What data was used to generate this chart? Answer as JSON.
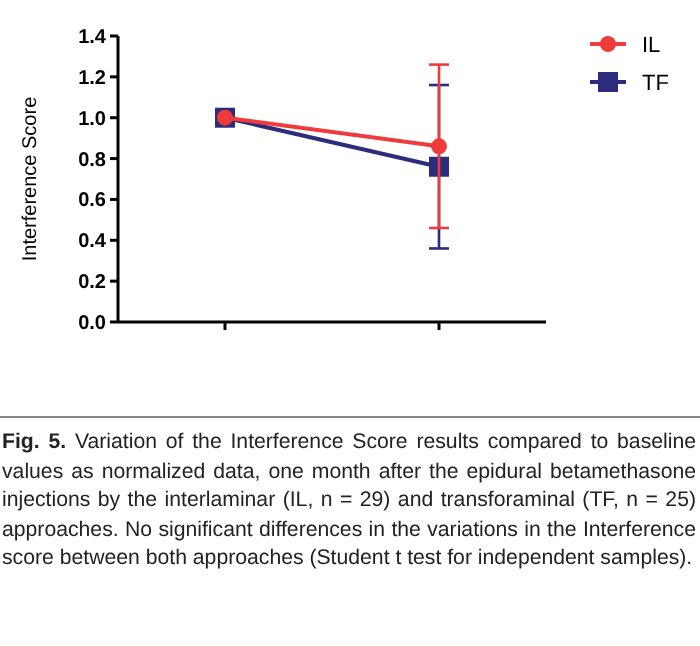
{
  "chart_data": {
    "type": "line",
    "ylabel": "Interference Score",
    "categories": [
      null,
      null
    ],
    "series": [
      {
        "name": "IL",
        "color": "#ee3b3b",
        "values": [
          1.0,
          0.86
        ],
        "errors": [
          null,
          0.4
        ],
        "marker": "circle"
      },
      {
        "name": "TF",
        "color": "#2b2d7c",
        "values": [
          1.0,
          0.76
        ],
        "errors": [
          null,
          0.4
        ],
        "marker": "square"
      }
    ],
    "ylim": [
      0,
      1.4
    ],
    "yticks": [
      {
        "value": 0,
        "label": "0.0"
      },
      {
        "value": 0.2,
        "label": "0.2"
      },
      {
        "value": 0.4,
        "label": "0.4"
      },
      {
        "value": 0.6,
        "label": "0.6"
      },
      {
        "value": 0.8,
        "label": "0.8"
      },
      {
        "value": 1,
        "label": "1.0"
      },
      {
        "value": 1.2,
        "label": "1.2"
      },
      {
        "value": 1.4,
        "label": "1.4"
      }
    ],
    "grid": false,
    "legend": "top right",
    "line_style": "solid",
    "annotations": [
      "Fig. 5.",
      "Variation of the Interference Score results compared to baseline values as normalized data, one month after the epidural betamethasone injections by the interlaminar (IL, n = 29) and transforaminal (TF, n = 25) approaches. No significant differences in the variations in the Interference score between both approaches (Student t test for independent samples)."
    ]
  }
}
